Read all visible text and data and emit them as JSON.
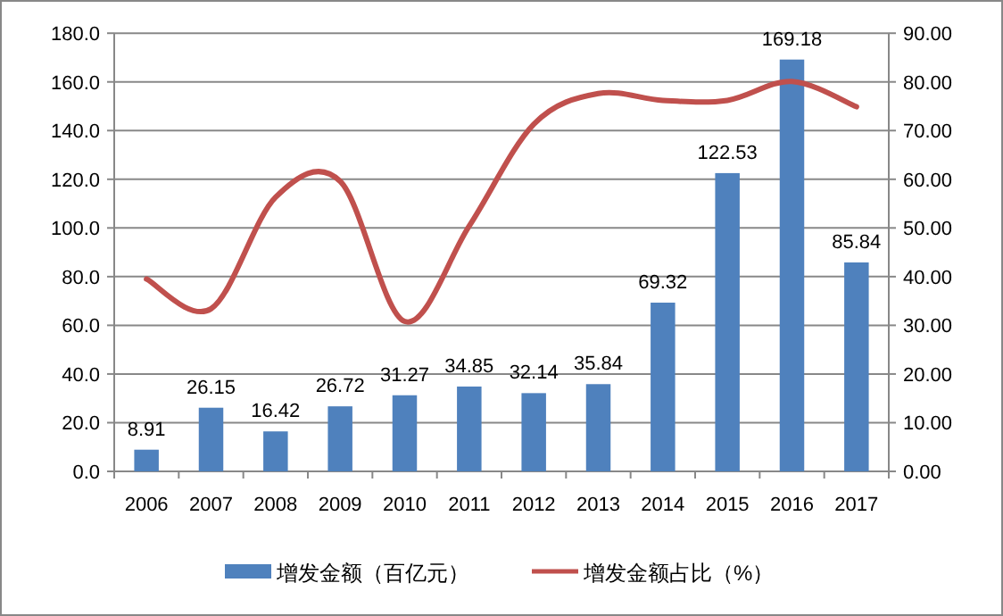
{
  "chart_data": {
    "type": "bar",
    "categories": [
      "2006",
      "2007",
      "2008",
      "2009",
      "2010",
      "2011",
      "2012",
      "2013",
      "2014",
      "2015",
      "2016",
      "2017"
    ],
    "series": [
      {
        "name": "增发金额（百亿元）",
        "color": "#4f81bd",
        "data_labels": true,
        "values": [
          8.91,
          26.15,
          16.42,
          26.72,
          31.27,
          34.85,
          32.14,
          35.84,
          69.32,
          122.53,
          169.18,
          85.84
        ]
      },
      {
        "name": "增发金额占比（%）",
        "type": "line",
        "axis": "y2",
        "color": "#c0504d",
        "values": [
          39.5,
          33.4,
          56.3,
          59.6,
          30.8,
          50.4,
          71.3,
          77.6,
          76.2,
          76.2,
          80.1,
          74.9
        ]
      }
    ],
    "ylim": [
      0,
      180
    ],
    "yticks": [
      {
        "value": 0,
        "label": "0.0"
      },
      {
        "value": 20,
        "label": "20.0"
      },
      {
        "value": 40,
        "label": "40.0"
      },
      {
        "value": 60,
        "label": "60.0"
      },
      {
        "value": 80,
        "label": "80.0"
      },
      {
        "value": 100,
        "label": "100.0"
      },
      {
        "value": 120,
        "label": "120.0"
      },
      {
        "value": 140,
        "label": "140.0"
      },
      {
        "value": 160,
        "label": "160.0"
      },
      {
        "value": 180,
        "label": "180.0"
      }
    ],
    "y2lim": [
      0,
      90
    ],
    "y2ticks": [
      {
        "value": 0,
        "label": "0.00"
      },
      {
        "value": 10,
        "label": "10.00"
      },
      {
        "value": 20,
        "label": "20.00"
      },
      {
        "value": 30,
        "label": "30.00"
      },
      {
        "value": 40,
        "label": "40.00"
      },
      {
        "value": 50,
        "label": "50.00"
      },
      {
        "value": 60,
        "label": "60.00"
      },
      {
        "value": 70,
        "label": "70.00"
      },
      {
        "value": 80,
        "label": "80.00"
      },
      {
        "value": 90,
        "label": "90.00"
      }
    ],
    "grid": "y",
    "legend": "bottom"
  }
}
